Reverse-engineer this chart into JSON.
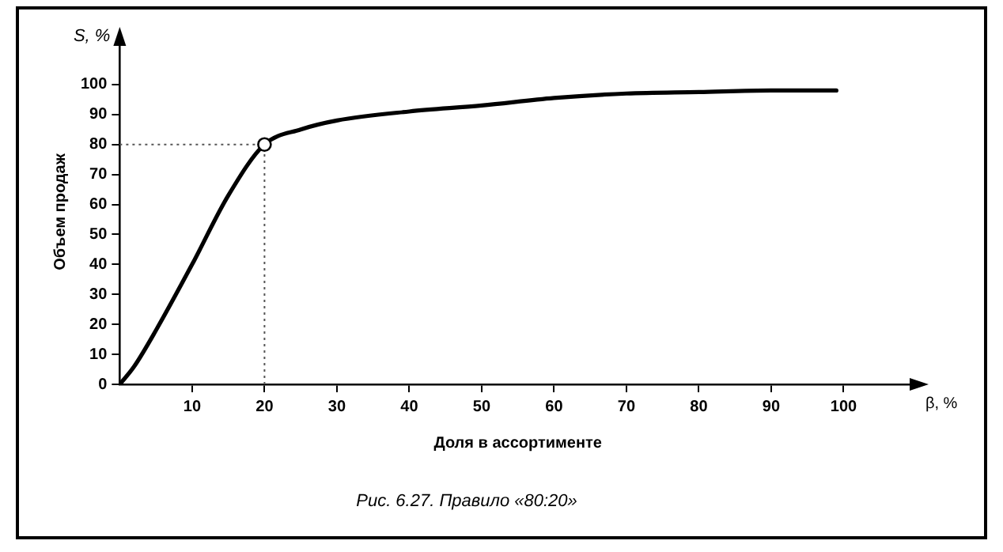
{
  "chart_data": {
    "type": "line",
    "xlabel": "Доля в ассортименте",
    "ylabel": "Объем продаж",
    "annotations": [
      "S, %",
      "β, %",
      "Рис. 6.27. Правило «80:20»"
    ],
    "series": [
      {
        "color": "#000000",
        "marker": "none",
        "x": [
          0,
          2,
          5,
          10,
          15,
          20,
          25,
          30,
          40,
          50,
          60,
          70,
          80,
          90,
          99
        ],
        "values": [
          0,
          6,
          18,
          40,
          63,
          80,
          85,
          88,
          91,
          93,
          95.5,
          97,
          97.5,
          98,
          98
        ]
      },
      {
        "type": "scatter",
        "color": "#ffffff",
        "marker": "circle",
        "x": [
          20
        ],
        "values": [
          80
        ]
      }
    ],
    "ref_lines": [
      {
        "axis": "x",
        "value": 20,
        "line_style": "dotted",
        "color": "#555555"
      },
      {
        "axis": "y",
        "value": 80,
        "line_style": "dotted",
        "color": "#555555"
      }
    ],
    "xlim": [
      0,
      110
    ],
    "xticks": [
      10,
      20,
      30,
      40,
      50,
      60,
      70,
      80,
      90,
      100
    ],
    "ylim": [
      0,
      115
    ],
    "yticks": [
      0,
      10,
      20,
      30,
      40,
      50,
      60,
      70,
      80,
      90,
      100
    ],
    "grid": false,
    "legend": false
  }
}
